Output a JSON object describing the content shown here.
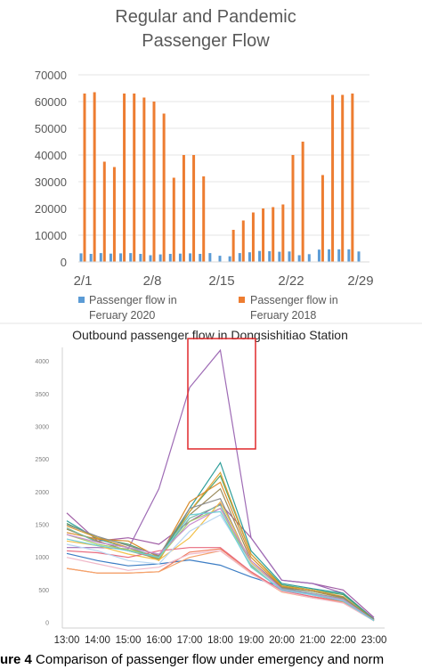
{
  "chart_data": [
    {
      "type": "bar",
      "title_lines": [
        "Regular and Pandemic",
        "Passenger Flow"
      ],
      "xlabel": "",
      "ylabel": "",
      "ylim": [
        0,
        70000
      ],
      "yticks": [
        "0",
        "10000",
        "20000",
        "30000",
        "40000",
        "50000",
        "60000",
        "70000"
      ],
      "xtick_labels": [
        "2/1",
        "2/8",
        "2/15",
        "2/22",
        "2/29"
      ],
      "categories": [
        "2/1",
        "2/2",
        "2/3",
        "2/4",
        "2/5",
        "2/6",
        "2/7",
        "2/8",
        "2/9",
        "2/10",
        "2/11",
        "2/12",
        "2/13",
        "2/14",
        "2/15",
        "2/16",
        "2/17",
        "2/18",
        "2/19",
        "2/20",
        "2/21",
        "2/22",
        "2/23",
        "2/24",
        "2/25",
        "2/26",
        "2/27",
        "2/28",
        "2/29"
      ],
      "legend_position": "bottom",
      "grid": true,
      "series": [
        {
          "name_lines": [
            "Passenger flow in",
            "Feruary 2020"
          ],
          "color": "#5B9BD5",
          "values": [
            3200,
            3000,
            3300,
            3100,
            3200,
            3300,
            3000,
            2500,
            2800,
            3000,
            3100,
            3200,
            3000,
            3300,
            2300,
            2100,
            3300,
            3600,
            4100,
            4000,
            3800,
            3900,
            2500,
            2900,
            4600,
            4700,
            4700,
            4700,
            3900
          ]
        },
        {
          "name_lines": [
            "Passenger flow in",
            "Feruary 2018"
          ],
          "color": "#ED7D31",
          "values": [
            63000,
            63500,
            37500,
            35500,
            63000,
            63000,
            61500,
            60000,
            55500,
            31500,
            40000,
            40000,
            32000,
            0,
            0,
            12000,
            15500,
            18500,
            20000,
            20500,
            21500,
            40000,
            45000,
            0,
            32500,
            62500,
            62500,
            63000,
            0
          ]
        }
      ]
    },
    {
      "type": "line",
      "title": "Outbound passenger flow in Dongsishitiao Station",
      "xlabel": "",
      "ylabel": "",
      "x": [
        "13:00",
        "14:00",
        "15:00",
        "16:00",
        "17:00",
        "18:00",
        "19:00",
        "20:00",
        "21:00",
        "22:00",
        "23:00"
      ],
      "ylim": [
        0,
        4200
      ],
      "yticks": [
        "0",
        "500",
        "1000",
        "1500",
        "2000",
        "2500",
        "3000",
        "3500",
        "4000"
      ],
      "grid": false,
      "annotation": {
        "type": "highlight-box",
        "color": "#E0292B",
        "x_range": [
          "17:00",
          "19:00"
        ],
        "y_range": [
          2660,
          4350
        ]
      },
      "series": [
        {
          "color": "#A05DA5",
          "values": [
            1680,
            1250,
            1300,
            1200,
            1550,
            1820,
            1300,
            650,
            600,
            500,
            80
          ]
        },
        {
          "color": "#9E6BB5",
          "values": [
            1150,
            1150,
            1130,
            2050,
            3600,
            4170,
            1300,
            650,
            600,
            450,
            60
          ]
        },
        {
          "color": "#3C7DC4",
          "values": [
            1060,
            950,
            870,
            900,
            960,
            880,
            700,
            550,
            420,
            350,
            50
          ]
        },
        {
          "color": "#2E9E9A",
          "values": [
            1560,
            1280,
            1150,
            970,
            1750,
            2450,
            1100,
            600,
            520,
            450,
            50
          ]
        },
        {
          "color": "#4FA36B",
          "values": [
            1520,
            1300,
            1200,
            1020,
            1700,
            2250,
            1050,
            580,
            500,
            430,
            50
          ]
        },
        {
          "color": "#E0A030",
          "values": [
            1480,
            1300,
            1150,
            950,
            1700,
            2300,
            1050,
            560,
            500,
            400,
            40
          ]
        },
        {
          "color": "#D98C2B",
          "values": [
            1380,
            1280,
            1250,
            1000,
            1850,
            2150,
            1000,
            550,
            480,
            380,
            40
          ]
        },
        {
          "color": "#9A8A5A",
          "values": [
            1430,
            1250,
            1100,
            980,
            1650,
            2050,
            950,
            540,
            480,
            390,
            40
          ]
        },
        {
          "color": "#8C8C8C",
          "values": [
            1500,
            1320,
            1180,
            1030,
            1750,
            1900,
            900,
            530,
            450,
            370,
            30
          ]
        },
        {
          "color": "#74B8A0",
          "values": [
            1450,
            1230,
            1150,
            1000,
            1600,
            1800,
            880,
            520,
            450,
            360,
            30
          ]
        },
        {
          "color": "#A6CF70",
          "values": [
            1350,
            1200,
            1120,
            990,
            1550,
            1750,
            860,
            500,
            440,
            350,
            30
          ]
        },
        {
          "color": "#F2C04A",
          "values": [
            1250,
            1180,
            1050,
            960,
            1300,
            1850,
            920,
            500,
            430,
            340,
            30
          ]
        },
        {
          "color": "#F07B5A",
          "values": [
            830,
            760,
            760,
            780,
            1080,
            1130,
            780,
            480,
            390,
            320,
            30
          ]
        },
        {
          "color": "#F4A46A",
          "values": [
            830,
            760,
            760,
            780,
            1000,
            1100,
            760,
            470,
            380,
            310,
            30
          ]
        },
        {
          "color": "#E86A7E",
          "values": [
            1100,
            1070,
            1000,
            1100,
            1150,
            1150,
            780,
            490,
            400,
            330,
            30
          ]
        },
        {
          "color": "#F0B8C8",
          "values": [
            1000,
            900,
            800,
            850,
            1050,
            1100,
            750,
            480,
            380,
            300,
            30
          ]
        },
        {
          "color": "#B7D6F2",
          "values": [
            1200,
            1100,
            950,
            900,
            1400,
            1650,
            900,
            500,
            420,
            340,
            30
          ]
        },
        {
          "color": "#C98CD0",
          "values": [
            1350,
            1230,
            1150,
            1050,
            1500,
            1750,
            950,
            510,
            440,
            350,
            35
          ]
        },
        {
          "color": "#6FCFD8",
          "values": [
            1280,
            1180,
            1100,
            1000,
            1650,
            1700,
            850,
            500,
            430,
            330,
            30
          ]
        }
      ]
    }
  ],
  "caption": {
    "label": "ure 4",
    "text": " Comparison of passenger flow under emergency and norm"
  }
}
